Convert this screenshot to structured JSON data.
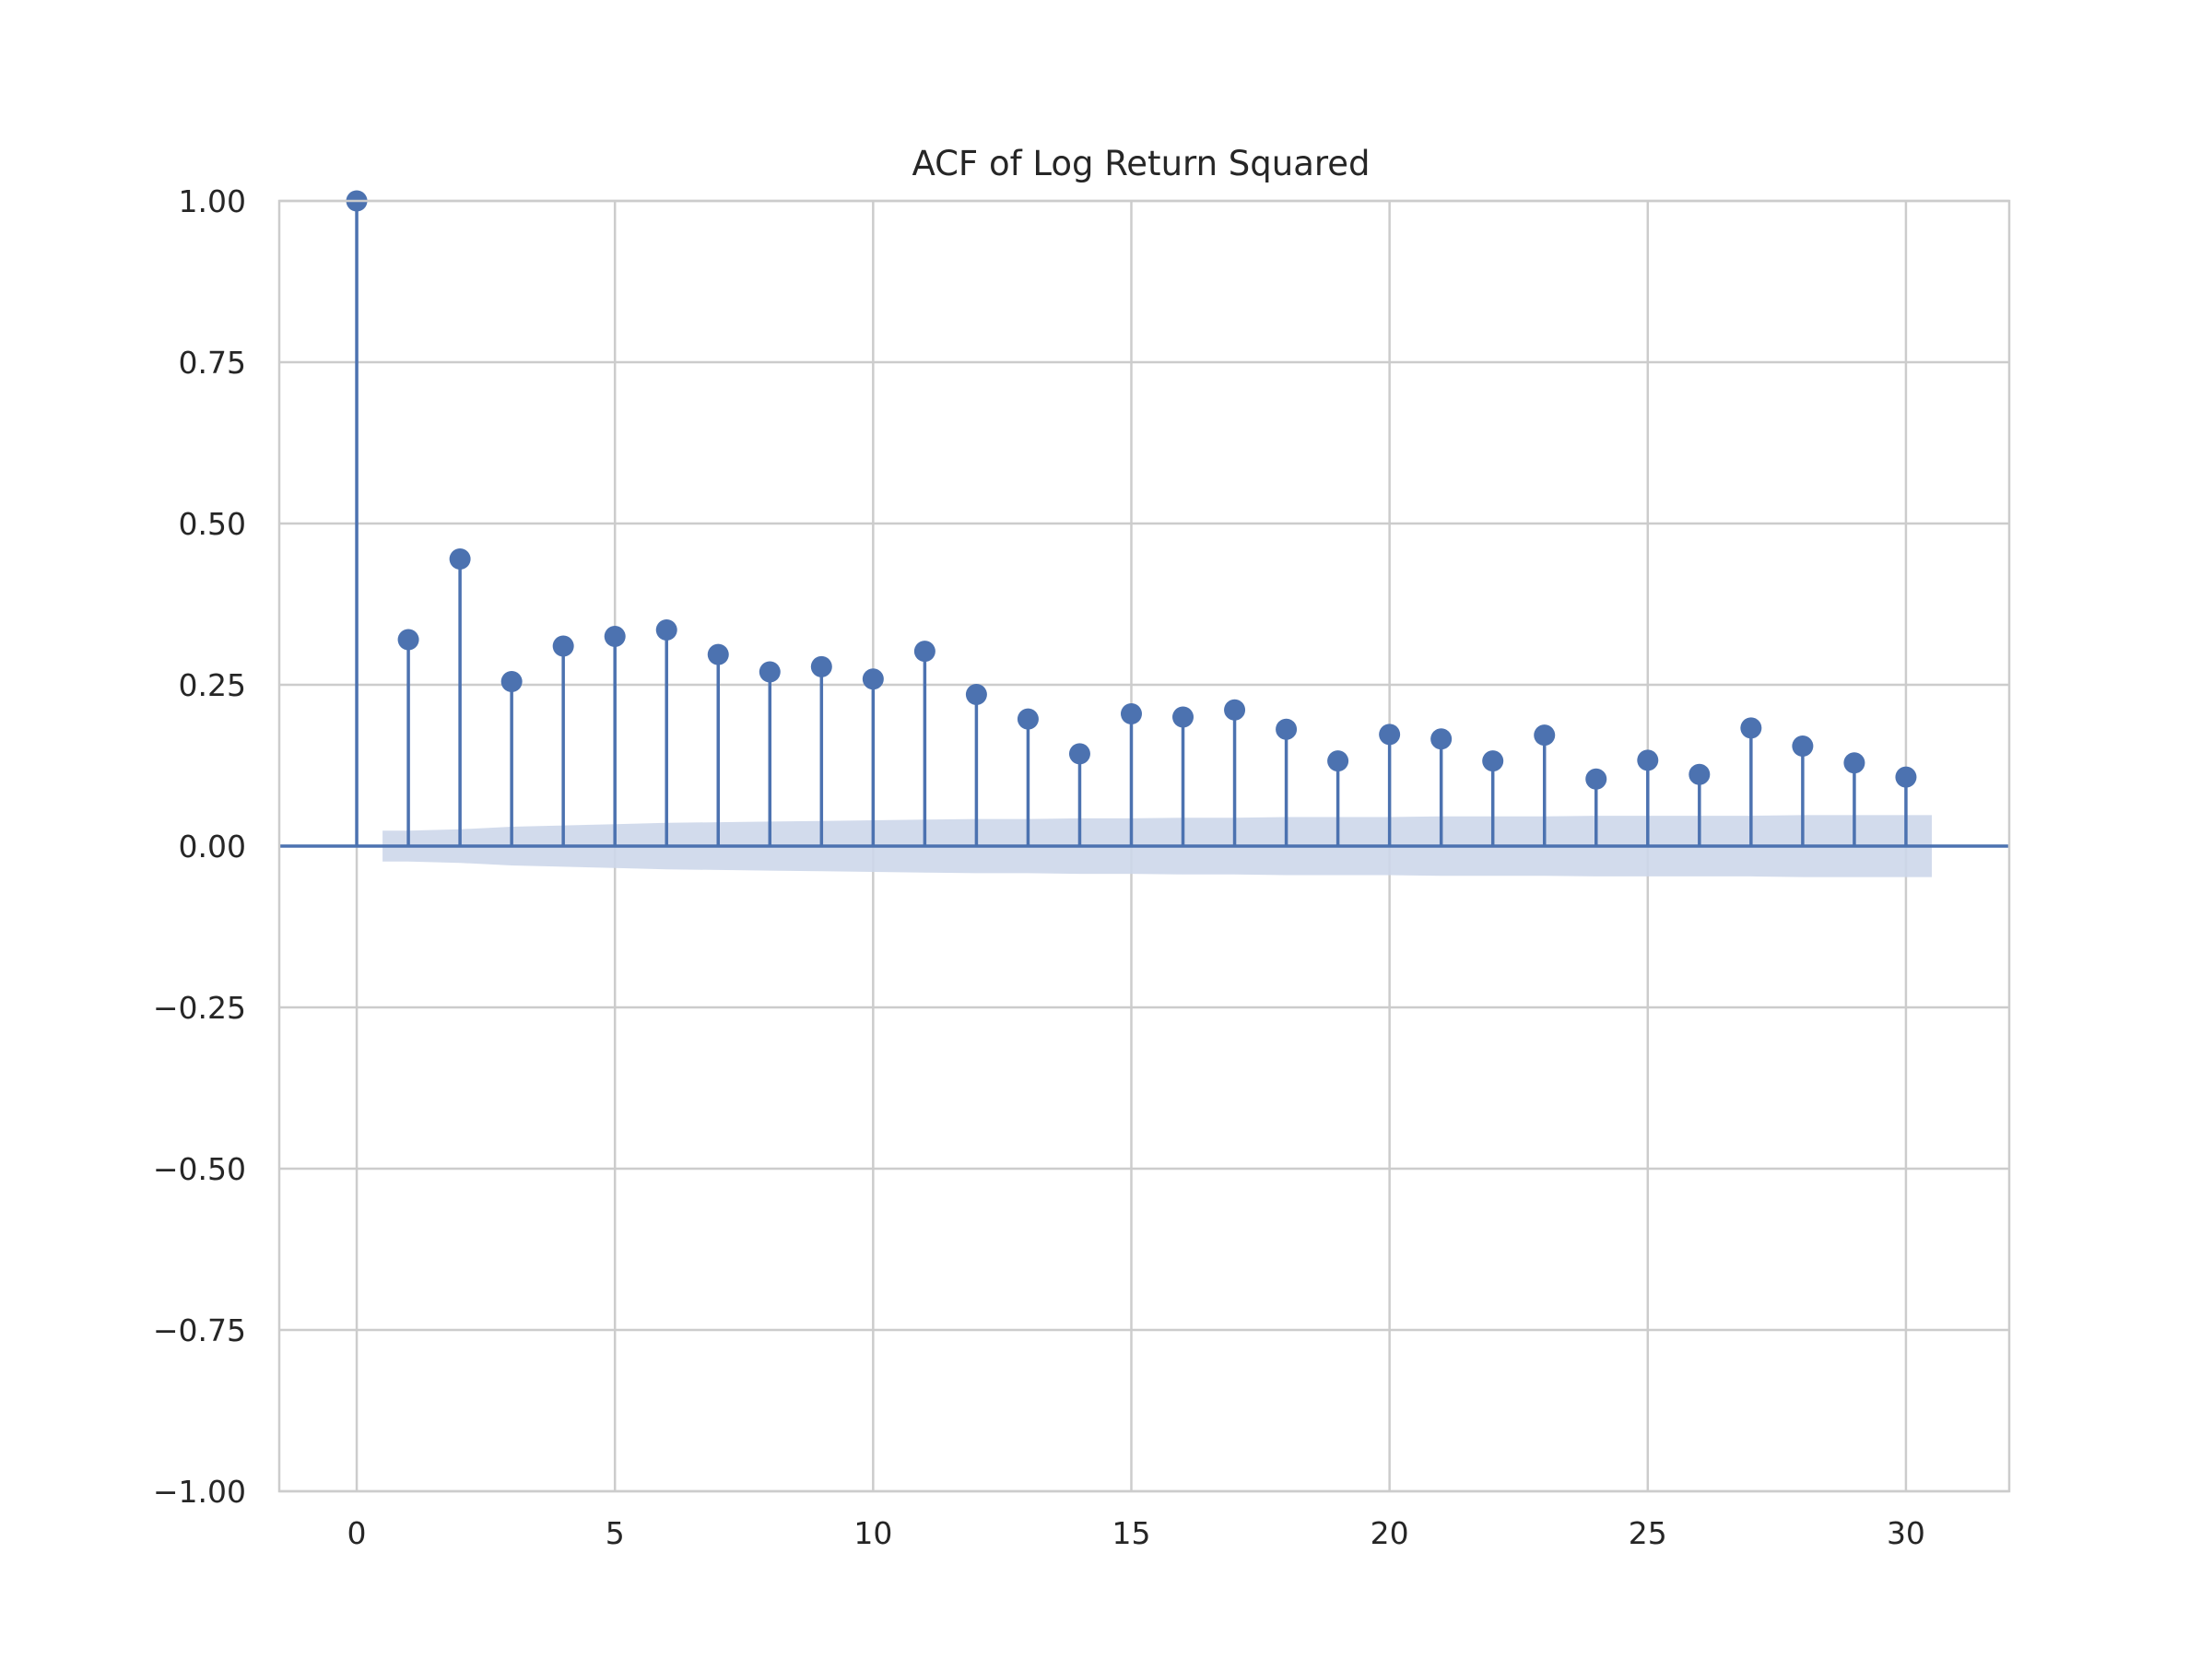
{
  "chart_data": {
    "type": "stem",
    "title": "ACF of Log Return Squared",
    "xlabel": "",
    "ylabel": "",
    "xlim": [
      -1.5,
      32
    ],
    "ylim": [
      -1.0,
      1.0
    ],
    "x_ticks": [
      0,
      5,
      10,
      15,
      20,
      25,
      30
    ],
    "x_tick_labels": [
      "0",
      "5",
      "10",
      "15",
      "20",
      "25",
      "30"
    ],
    "y_ticks": [
      1.0,
      0.75,
      0.5,
      0.25,
      0.0,
      -0.25,
      -0.5,
      -0.75,
      -1.0
    ],
    "y_tick_labels": [
      "1.00",
      "0.75",
      "0.50",
      "0.25",
      "0.00",
      "−0.25",
      "−0.50",
      "−0.75",
      "−1.00"
    ],
    "grid": true,
    "lags": [
      0,
      1,
      2,
      3,
      4,
      5,
      6,
      7,
      8,
      9,
      10,
      11,
      12,
      13,
      14,
      15,
      16,
      17,
      18,
      19,
      20,
      21,
      22,
      23,
      24,
      25,
      26,
      27,
      28,
      29,
      30
    ],
    "values": [
      1.0,
      0.32,
      0.445,
      0.255,
      0.31,
      0.325,
      0.335,
      0.297,
      0.27,
      0.278,
      0.259,
      0.302,
      0.235,
      0.197,
      0.143,
      0.205,
      0.2,
      0.211,
      0.181,
      0.132,
      0.173,
      0.166,
      0.132,
      0.172,
      0.104,
      0.133,
      0.111,
      0.183,
      0.155,
      0.129,
      0.107
    ],
    "confidence_band": {
      "x": [
        0.5,
        1,
        2,
        3,
        4,
        5,
        6,
        7,
        8,
        9,
        10,
        11,
        12,
        13,
        14,
        15,
        16,
        17,
        18,
        19,
        20,
        21,
        22,
        23,
        24,
        25,
        26,
        27,
        28,
        29,
        30,
        30.5
      ],
      "upper": [
        0.024,
        0.024,
        0.026,
        0.03,
        0.032,
        0.034,
        0.036,
        0.037,
        0.038,
        0.039,
        0.04,
        0.041,
        0.042,
        0.042,
        0.043,
        0.043,
        0.044,
        0.044,
        0.045,
        0.045,
        0.045,
        0.046,
        0.046,
        0.046,
        0.047,
        0.047,
        0.047,
        0.047,
        0.048,
        0.048,
        0.048,
        0.048
      ]
    },
    "colors": {
      "stem": "#4c72b0",
      "band": "#cdd7ea",
      "grid": "#cccccc",
      "axes": "#cccccc",
      "text": "#262626"
    }
  }
}
